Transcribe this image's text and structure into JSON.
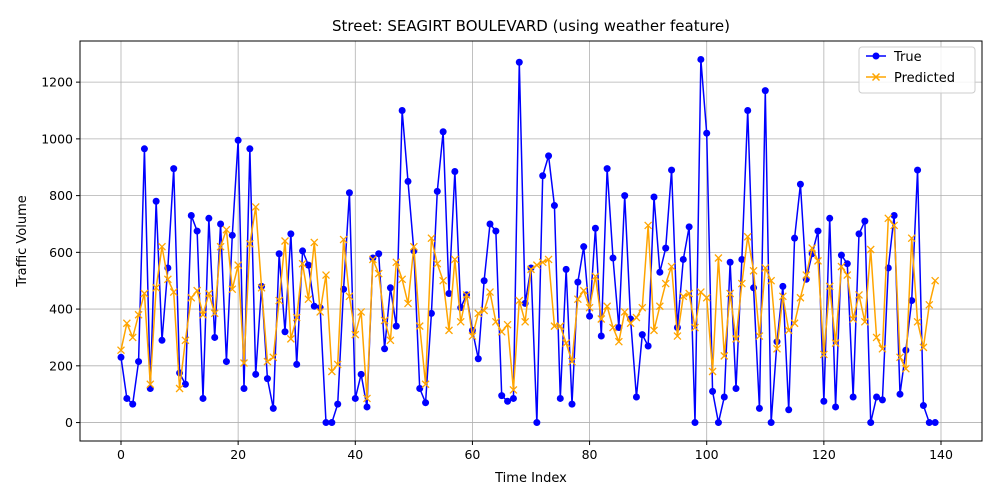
{
  "chart_data": {
    "type": "line",
    "title": "Street: SEAGIRT BOULEVARD (using weather feature)",
    "xlabel": "Time Index",
    "ylabel": "Traffic Volume",
    "xlim": [
      -7,
      147
    ],
    "ylim": [
      -65,
      1345
    ],
    "xticks": [
      0,
      20,
      40,
      60,
      80,
      100,
      120,
      140
    ],
    "yticks": [
      0,
      200,
      400,
      600,
      800,
      1000,
      1200
    ],
    "grid": true,
    "legend_position": "upper right",
    "series": [
      {
        "name": "True",
        "color": "#0000ff",
        "marker": "circle",
        "values": [
          230,
          85,
          65,
          215,
          965,
          120,
          780,
          290,
          545,
          895,
          175,
          135,
          730,
          675,
          85,
          720,
          300,
          700,
          215,
          660,
          995,
          120,
          965,
          170,
          480,
          155,
          50,
          595,
          320,
          665,
          205,
          605,
          555,
          410,
          405,
          0,
          0,
          65,
          470,
          810,
          85,
          170,
          55,
          580,
          595,
          260,
          475,
          340,
          1100,
          850,
          605,
          120,
          70,
          385,
          815,
          1025,
          455,
          885,
          405,
          450,
          325,
          225,
          500,
          700,
          675,
          95,
          75,
          85,
          1270,
          420,
          545,
          0,
          870,
          940,
          765,
          85,
          540,
          65,
          495,
          620,
          375,
          685,
          305,
          895,
          580,
          335,
          800,
          365,
          90,
          310,
          270,
          795,
          530,
          615,
          890,
          335,
          575,
          690,
          0,
          1280,
          1020,
          110,
          0,
          90,
          565,
          120,
          575,
          1100,
          475,
          50,
          1170,
          0,
          285,
          480,
          45,
          650,
          840,
          505,
          595,
          675,
          75,
          720,
          55,
          590,
          560,
          90,
          665,
          710,
          0,
          90,
          80,
          545,
          730,
          100,
          255,
          430,
          890,
          60,
          0,
          0
        ]
      },
      {
        "name": "Predicted",
        "color": "#ffa500",
        "marker": "x",
        "values": [
          255,
          350,
          300,
          380,
          455,
          135,
          475,
          620,
          505,
          460,
          120,
          290,
          440,
          465,
          380,
          455,
          385,
          620,
          680,
          470,
          555,
          210,
          630,
          760,
          475,
          215,
          230,
          430,
          640,
          295,
          370,
          560,
          435,
          635,
          390,
          520,
          180,
          205,
          645,
          445,
          310,
          390,
          85,
          575,
          525,
          360,
          290,
          565,
          505,
          420,
          620,
          340,
          135,
          650,
          560,
          500,
          325,
          575,
          355,
          450,
          305,
          385,
          395,
          460,
          355,
          320,
          345,
          115,
          430,
          355,
          540,
          555,
          565,
          575,
          340,
          340,
          280,
          215,
          435,
          465,
          405,
          515,
          365,
          410,
          335,
          285,
          390,
          350,
          370,
          405,
          695,
          325,
          410,
          490,
          550,
          305,
          445,
          455,
          335,
          460,
          440,
          180,
          580,
          235,
          455,
          295,
          490,
          655,
          535,
          305,
          545,
          500,
          260,
          445,
          325,
          350,
          440,
          520,
          615,
          570,
          240,
          480,
          280,
          550,
          520,
          365,
          450,
          355,
          610,
          300,
          260,
          720,
          695,
          230,
          190,
          650,
          355,
          265,
          415,
          500
        ]
      }
    ]
  }
}
